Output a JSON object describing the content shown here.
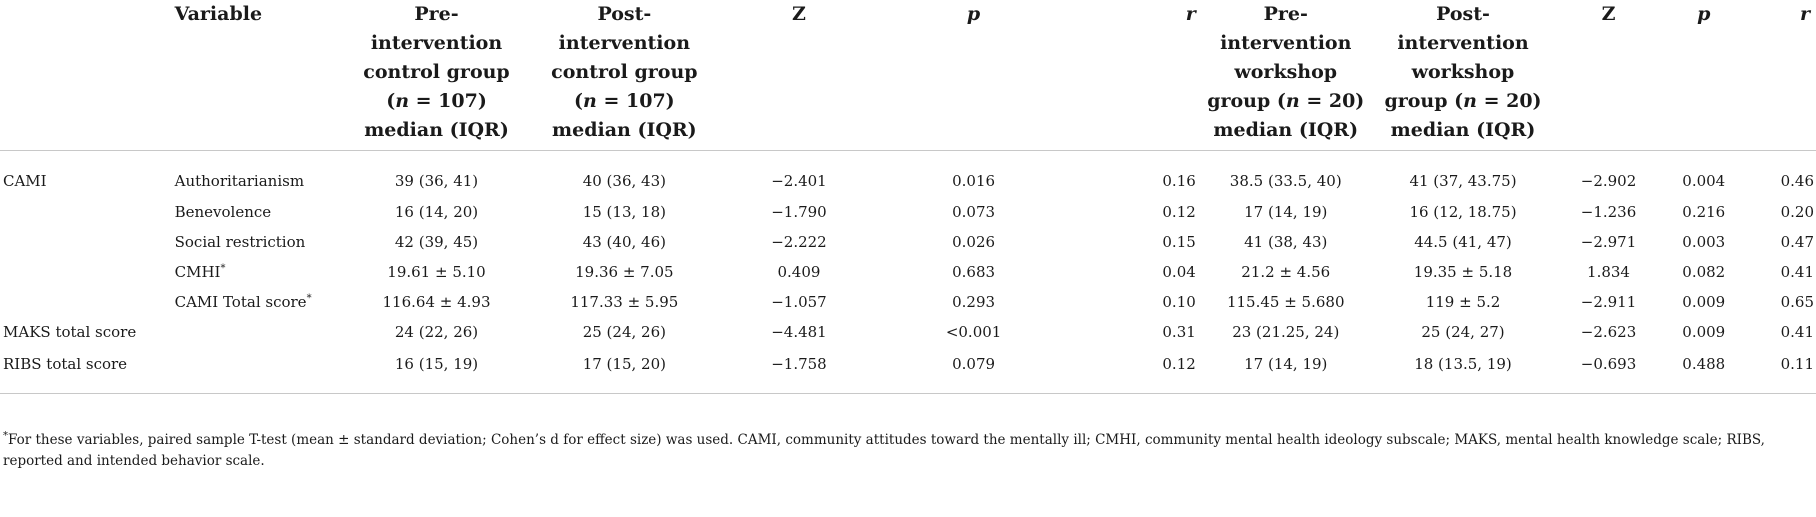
{
  "header": {
    "variable": "Variable",
    "pre_control": [
      "Pre-",
      "intervention",
      "control group",
      "(",
      "n",
      " = 107)",
      "median (IQR)"
    ],
    "post_control": [
      "Post-",
      "intervention",
      "control group",
      "(",
      "n",
      " = 107)",
      "median (IQR)"
    ],
    "z": "Z",
    "p": "p",
    "r": "r",
    "pre_workshop": [
      "Pre-",
      "intervention",
      "workshop",
      "group (",
      "n",
      " = 20)",
      "median (IQR)"
    ],
    "post_workshop": [
      "Post-",
      "intervention",
      "workshop",
      "group (",
      "n",
      " = 20)",
      "median (IQR)"
    ]
  },
  "rows": [
    {
      "category": "CAMI",
      "variable": "Authoritarianism",
      "mark": "",
      "pre_control": "39 (36, 41)",
      "post_control": "40 (36, 43)",
      "z1": "−2.401",
      "p1": "0.016",
      "r1": "0.16",
      "pre_workshop": "38.5 (33.5, 40)",
      "post_workshop": "41 (37, 43.75)",
      "z2": "−2.902",
      "p2": "0.004",
      "r2": "0.46"
    },
    {
      "category": "",
      "variable": "Benevolence",
      "mark": "",
      "pre_control": "16 (14, 20)",
      "post_control": "15 (13, 18)",
      "z1": "−1.790",
      "p1": "0.073",
      "r1": "0.12",
      "pre_workshop": "17 (14, 19)",
      "post_workshop": "16 (12, 18.75)",
      "z2": "−1.236",
      "p2": "0.216",
      "r2": "0.20"
    },
    {
      "category": "",
      "variable": "Social restriction",
      "mark": "",
      "pre_control": "42 (39, 45)",
      "post_control": "43 (40, 46)",
      "z1": "−2.222",
      "p1": "0.026",
      "r1": "0.15",
      "pre_workshop": "41 (38, 43)",
      "post_workshop": "44.5 (41, 47)",
      "z2": "−2.971",
      "p2": "0.003",
      "r2": "0.47"
    },
    {
      "category": "",
      "variable": "CMHI",
      "mark": "*",
      "pre_control": "19.61 ± 5.10",
      "post_control": "19.36 ± 7.05",
      "z1": "0.409",
      "p1": "0.683",
      "r1": "0.04",
      "pre_workshop": "21.2 ± 4.56",
      "post_workshop": "19.35 ± 5.18",
      "z2": "1.834",
      "p2": "0.082",
      "r2": "0.41"
    },
    {
      "category": "",
      "variable": "CAMI Total score",
      "mark": "*",
      "pre_control": "116.64 ± 4.93",
      "post_control": "117.33 ± 5.95",
      "z1": "−1.057",
      "p1": "0.293",
      "r1": "0.10",
      "pre_workshop": "115.45 ± 5.680",
      "post_workshop": "119 ± 5.2",
      "z2": "−2.911",
      "p2": "0.009",
      "r2": "0.65"
    },
    {
      "category": "MAKS total score",
      "variable": "",
      "mark": "",
      "pre_control": "24 (22, 26)",
      "post_control": "25 (24, 26)",
      "z1": "−4.481",
      "p1": "<0.001",
      "r1": "0.31",
      "pre_workshop": "23 (21.25, 24)",
      "post_workshop": "25 (24, 27)",
      "z2": "−2.623",
      "p2": "0.009",
      "r2": "0.41"
    },
    {
      "category": "RIBS total score",
      "variable": "",
      "mark": "",
      "pre_control": "16 (15, 19)",
      "post_control": "17 (15, 20)",
      "z1": "−1.758",
      "p1": "0.079",
      "r1": "0.12",
      "pre_workshop": "17 (14, 19)",
      "post_workshop": "18 (13.5, 19)",
      "z2": "−0.693",
      "p2": "0.488",
      "r2": "0.11"
    }
  ],
  "footnote": {
    "mark": "*",
    "text": "For these variables, paired sample T-test (mean ± standard deviation; Cohen’s d for effect size) was used. CAMI, community attitudes toward the mentally ill; CMHI, community mental health ideology subscale; MAKS, mental health knowledge scale; RIBS, reported and intended behavior scale."
  }
}
